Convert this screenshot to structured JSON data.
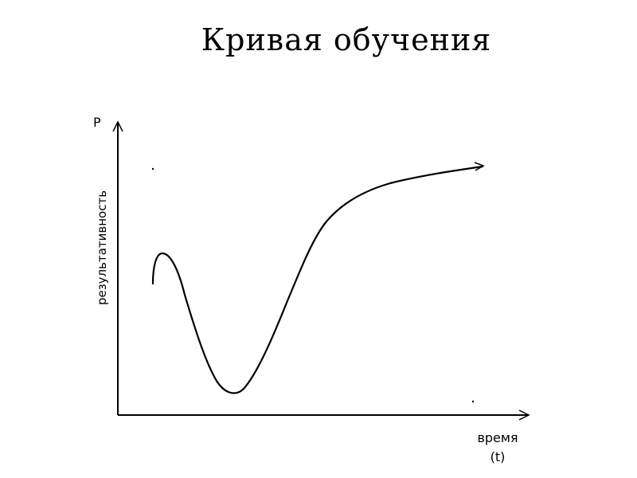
{
  "title": "Кривая обучения",
  "y_axis": {
    "symbol": "Р",
    "label": "результативность"
  },
  "x_axis": {
    "label": "время",
    "symbol": "(t)"
  },
  "colors": {
    "ink": "#000000",
    "background": "#ffffff"
  }
}
